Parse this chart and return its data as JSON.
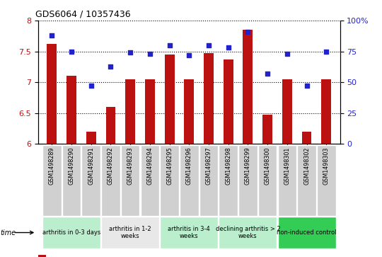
{
  "title": "GDS6064 / 10357436",
  "samples": [
    "GSM1498289",
    "GSM1498290",
    "GSM1498291",
    "GSM1498292",
    "GSM1498293",
    "GSM1498294",
    "GSM1498295",
    "GSM1498296",
    "GSM1498297",
    "GSM1498298",
    "GSM1498299",
    "GSM1498300",
    "GSM1498301",
    "GSM1498302",
    "GSM1498303"
  ],
  "transformed_count": [
    7.62,
    7.1,
    6.2,
    6.6,
    7.05,
    7.05,
    7.45,
    7.05,
    7.47,
    7.37,
    7.85,
    6.47,
    7.05,
    6.2,
    7.05
  ],
  "percentile_rank": [
    88,
    75,
    47,
    63,
    74,
    73,
    80,
    72,
    80,
    78,
    91,
    57,
    73,
    47,
    75
  ],
  "bar_color": "#bb1111",
  "dot_color": "#2222cc",
  "ylim_left": [
    6.0,
    8.0
  ],
  "ylim_right": [
    0,
    100
  ],
  "yticks_left": [
    6.0,
    6.5,
    7.0,
    7.5,
    8.0
  ],
  "yticks_right": [
    0,
    25,
    50,
    75,
    100
  ],
  "ytick_labels_right": [
    "0",
    "25",
    "50",
    "75",
    "100%"
  ],
  "groups": [
    {
      "label": "arthritis in 0-3 days",
      "start": 0,
      "end": 3,
      "color": "#bbeecc"
    },
    {
      "label": "arthritis in 1-2\nweeks",
      "start": 3,
      "end": 6,
      "color": "#e8e8e8"
    },
    {
      "label": "arthritis in 3-4\nweeks",
      "start": 6,
      "end": 9,
      "color": "#bbeecc"
    },
    {
      "label": "declining arthritis > 2\nweeks",
      "start": 9,
      "end": 12,
      "color": "#bbeecc"
    },
    {
      "label": "non-induced control",
      "start": 12,
      "end": 15,
      "color": "#33cc55"
    }
  ],
  "bar_bottom": 6.0,
  "bar_width": 0.5
}
